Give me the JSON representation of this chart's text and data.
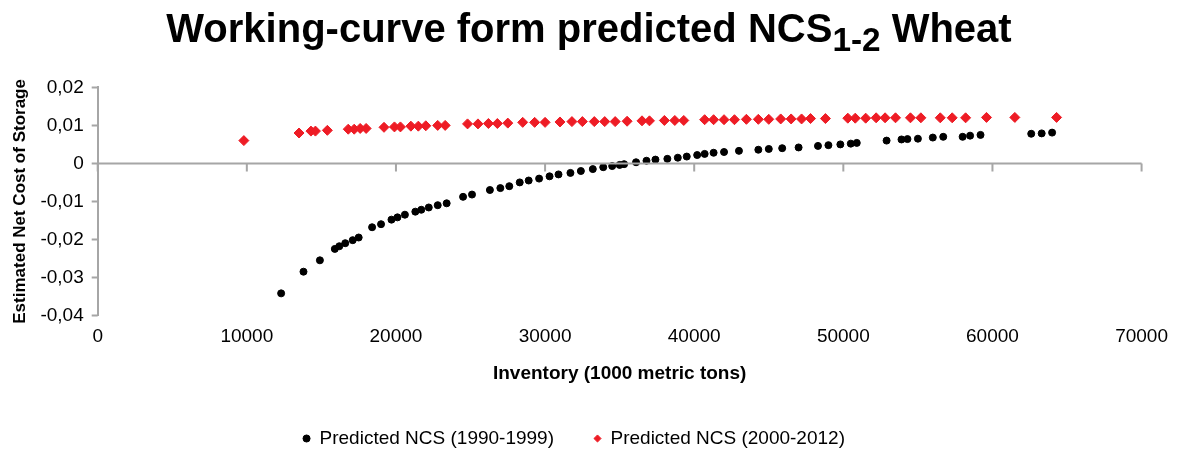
{
  "chart_data": {
    "type": "scatter",
    "title": "Working-curve form predicted NCS$_{1-2}$ Wheat",
    "xlabel": "Inventory (1000 metric tons)",
    "ylabel": "Estimated Net Cost of Storage",
    "xlim": [
      0,
      70000
    ],
    "xticks": [
      0,
      10000,
      20000,
      30000,
      40000,
      50000,
      60000,
      70000
    ],
    "ylim": [
      -0.04,
      0.02
    ],
    "yticks": [
      {
        "value": -0.04,
        "label": "-0,04"
      },
      {
        "value": -0.03,
        "label": "-0,03"
      },
      {
        "value": -0.02,
        "label": "-0,02"
      },
      {
        "value": -0.01,
        "label": "-0,01"
      },
      {
        "value": 0,
        "label": "0"
      },
      {
        "value": 0.01,
        "label": "0,01"
      },
      {
        "value": 0.02,
        "label": "0,02"
      }
    ],
    "grid": false,
    "legend": "bottom",
    "ref_lines": [
      {
        "axis": "y",
        "value": 0,
        "color": "#a6a6a6"
      }
    ],
    "series": [
      {
        "name": "Predicted NCS (1990-1999)",
        "color": "#000000",
        "marker": "circle",
        "x": [
          12300,
          13800,
          14900,
          15900,
          16200,
          16600,
          17100,
          17500,
          18400,
          19000,
          19700,
          20100,
          20600,
          21300,
          21700,
          22200,
          22800,
          23400,
          24500,
          25100,
          26300,
          27000,
          27600,
          28300,
          28900,
          29600,
          30300,
          30900,
          31700,
          32400,
          33200,
          33900,
          34500,
          35000,
          35300,
          36100,
          36800,
          37400,
          38200,
          38900,
          39500,
          40200,
          40700,
          41300,
          42000,
          43000,
          44300,
          45000,
          45900,
          47000,
          48300,
          49000,
          49800,
          50500,
          50900,
          52900,
          53900,
          54300,
          55000,
          56000,
          56700,
          58000,
          58500,
          59200,
          62600,
          63300,
          64000
        ],
        "values": [
          -0.0342,
          -0.0285,
          -0.0255,
          -0.0225,
          -0.0218,
          -0.021,
          -0.0202,
          -0.0195,
          -0.0168,
          -0.016,
          -0.0148,
          -0.0142,
          -0.0135,
          -0.0127,
          -0.0122,
          -0.0116,
          -0.011,
          -0.0105,
          -0.0088,
          -0.0082,
          -0.007,
          -0.0065,
          -0.006,
          -0.005,
          -0.0045,
          -0.004,
          -0.0034,
          -0.0029,
          -0.0025,
          -0.002,
          -0.0015,
          -0.001,
          -0.0007,
          -0.0004,
          -0.0002,
          0.0003,
          0.0007,
          0.001,
          0.0012,
          0.0015,
          0.0018,
          0.0022,
          0.0025,
          0.0028,
          0.003,
          0.0033,
          0.0036,
          0.0038,
          0.004,
          0.0042,
          0.0046,
          0.0048,
          0.005,
          0.0052,
          0.0054,
          0.006,
          0.0063,
          0.0064,
          0.0065,
          0.0068,
          0.007,
          0.007,
          0.0073,
          0.0075,
          0.0078,
          0.0079,
          0.0081
        ]
      },
      {
        "name": "Predicted NCS (2000-2012)",
        "color": "#ee1c25",
        "marker": "diamond",
        "x": [
          9800,
          13500,
          14300,
          14600,
          15400,
          16800,
          17200,
          17600,
          18000,
          19200,
          19900,
          20300,
          21000,
          21500,
          22000,
          22800,
          23300,
          24800,
          25500,
          26200,
          26800,
          27500,
          28500,
          29300,
          30000,
          31000,
          31800,
          32500,
          33300,
          34000,
          34700,
          35500,
          36500,
          37000,
          38000,
          38700,
          39300,
          40700,
          41300,
          42000,
          42700,
          43500,
          44300,
          45000,
          45800,
          46500,
          47200,
          47800,
          48800,
          50300,
          50800,
          51500,
          52200,
          52800,
          53500,
          54500,
          55200,
          56500,
          57300,
          58200,
          59600,
          61500,
          64300
        ],
        "values": [
          0.006,
          0.008,
          0.0085,
          0.0085,
          0.0087,
          0.009,
          0.009,
          0.0092,
          0.0092,
          0.0095,
          0.0096,
          0.0096,
          0.0098,
          0.0098,
          0.0099,
          0.01,
          0.01,
          0.0104,
          0.0104,
          0.0105,
          0.0105,
          0.0106,
          0.0108,
          0.0108,
          0.0108,
          0.0109,
          0.011,
          0.011,
          0.011,
          0.011,
          0.011,
          0.0111,
          0.0112,
          0.0112,
          0.0113,
          0.0113,
          0.0113,
          0.0115,
          0.0115,
          0.0115,
          0.0115,
          0.0116,
          0.0116,
          0.0116,
          0.0117,
          0.0117,
          0.0117,
          0.0118,
          0.0118,
          0.0119,
          0.0119,
          0.0119,
          0.012,
          0.012,
          0.012,
          0.012,
          0.012,
          0.012,
          0.012,
          0.012,
          0.0121,
          0.0121,
          0.0121
        ]
      }
    ]
  }
}
